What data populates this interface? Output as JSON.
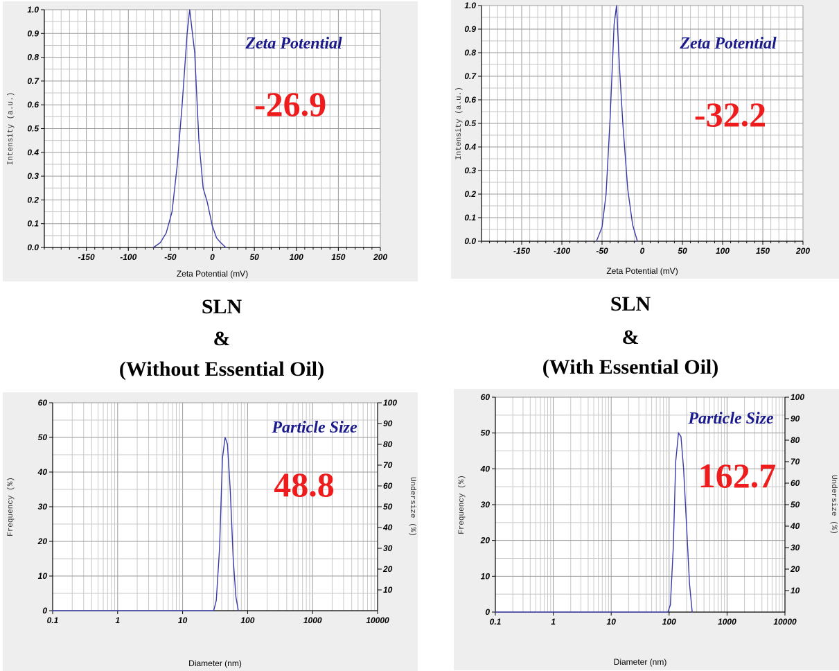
{
  "captions": {
    "left": {
      "line1": "SLN",
      "line2": "&",
      "line3": "(Without Essential Oil)"
    },
    "right": {
      "line1": "SLN",
      "line2": "&",
      "line3": "(With Essential Oil)"
    }
  },
  "chart_data": [
    {
      "type": "line",
      "panel": "zeta-left",
      "annotation": "Zeta Potential",
      "value_label": "-26.9",
      "xlabel": "Zeta Potential (mV)",
      "ylabel": "Intensity (a.u.)",
      "xlim": [
        -200,
        200
      ],
      "ylim": [
        0,
        1.0
      ],
      "xticks": [
        -150,
        -100,
        -50,
        0,
        50,
        100,
        150,
        200
      ],
      "yticks": [
        0.0,
        0.1,
        0.2,
        0.3,
        0.4,
        0.5,
        0.6,
        0.7,
        0.8,
        0.9,
        1.0
      ],
      "grid": true,
      "series": [
        {
          "color": "#3a3aa8",
          "x": [
            -70,
            -62,
            -55,
            -48,
            -42,
            -36,
            -30,
            -27,
            -21,
            -16,
            -11,
            -6,
            0,
            5,
            10,
            16
          ],
          "y": [
            0.0,
            0.02,
            0.06,
            0.15,
            0.34,
            0.6,
            0.9,
            1.0,
            0.82,
            0.45,
            0.25,
            0.19,
            0.09,
            0.04,
            0.02,
            0.0
          ]
        }
      ]
    },
    {
      "type": "line",
      "panel": "zeta-right",
      "annotation": "Zeta Potential",
      "value_label": "-32.2",
      "xlabel": "Zeta Potential (mV)",
      "ylabel": "Intensity (a.u.)",
      "xlim": [
        -200,
        200
      ],
      "ylim": [
        0,
        1.0
      ],
      "xticks": [
        -150,
        -100,
        -50,
        0,
        50,
        100,
        150,
        200
      ],
      "yticks": [
        0.0,
        0.1,
        0.2,
        0.3,
        0.4,
        0.5,
        0.6,
        0.7,
        0.8,
        0.9,
        1.0
      ],
      "grid": true,
      "series": [
        {
          "color": "#3a3aa8",
          "x": [
            -57,
            -50,
            -45,
            -40,
            -35,
            -32,
            -28,
            -24,
            -18,
            -12,
            -6
          ],
          "y": [
            0.0,
            0.06,
            0.2,
            0.52,
            0.92,
            1.0,
            0.72,
            0.49,
            0.22,
            0.07,
            0.0
          ]
        }
      ]
    },
    {
      "type": "line",
      "panel": "size-left",
      "annotation": "Particle Size",
      "value_label": "48.8",
      "xlabel": "Diameter (nm)",
      "ylabel": "Frequency (%)",
      "ylabel_right": "Undersize (%)",
      "xscale": "log",
      "xlim": [
        0.1,
        10000
      ],
      "ylim": [
        0,
        60
      ],
      "y2lim": [
        0,
        100
      ],
      "xticks": [
        0.1,
        1,
        10,
        100,
        1000,
        10000
      ],
      "yticks": [
        0,
        10,
        20,
        30,
        40,
        50,
        60
      ],
      "y2ticks": [
        10,
        20,
        30,
        40,
        50,
        60,
        70,
        80,
        90,
        100
      ],
      "grid": true,
      "series": [
        {
          "color": "#3a3aa8",
          "x": [
            0.1,
            30,
            33,
            37,
            41,
            45,
            49,
            54,
            60,
            66,
            72
          ],
          "y": [
            0,
            0,
            3,
            18,
            44,
            50,
            48,
            35,
            15,
            4,
            0
          ]
        }
      ]
    },
    {
      "type": "line",
      "panel": "size-right",
      "annotation": "Particle Size",
      "value_label": "162.7",
      "xlabel": "Diameter (nm)",
      "ylabel": "Frequency (%)",
      "ylabel_right": "Undersize (%)",
      "xscale": "log",
      "xlim": [
        0.1,
        10000
      ],
      "ylim": [
        0,
        60
      ],
      "y2lim": [
        0,
        100
      ],
      "xticks": [
        0.1,
        1,
        10,
        100,
        1000,
        10000
      ],
      "yticks": [
        0,
        10,
        20,
        30,
        40,
        50,
        60
      ],
      "y2ticks": [
        10,
        20,
        30,
        40,
        50,
        60,
        70,
        80,
        90,
        100
      ],
      "grid": true,
      "series": [
        {
          "color": "#3a3aa8",
          "x": [
            0.1,
            95,
            105,
            118,
            130,
            145,
            160,
            178,
            200,
            225,
            250
          ],
          "y": [
            0,
            0,
            2,
            18,
            42,
            50,
            49,
            40,
            24,
            8,
            0
          ]
        }
      ]
    }
  ]
}
